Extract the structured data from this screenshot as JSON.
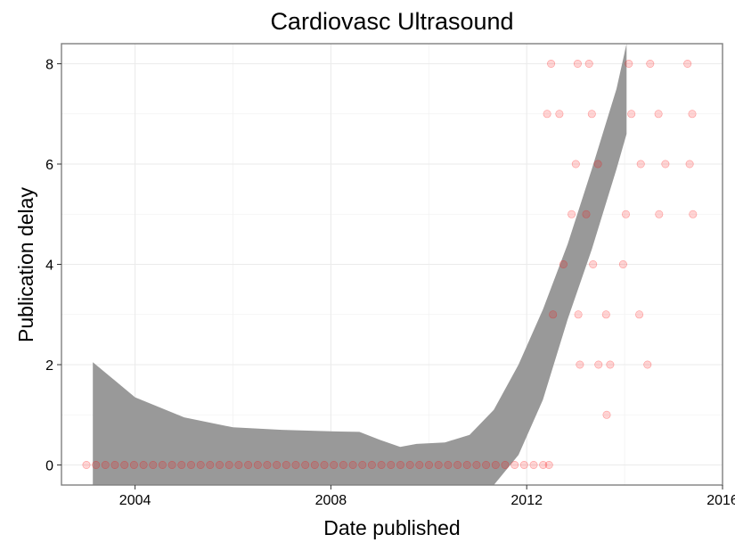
{
  "chart_data": {
    "type": "scatter",
    "title": "Cardiovasc Ultrasound",
    "xlabel": "Date published",
    "ylabel": "Publication delay",
    "xlim": [
      "2002-07-01",
      "2016-01-01"
    ],
    "ylim": [
      -0.4,
      8.4
    ],
    "x_ticks": [
      "2004",
      "2008",
      "2012",
      "2016"
    ],
    "x_tick_values": [
      "2004-01-01",
      "2008-01-01",
      "2012-01-01",
      "2016-01-01"
    ],
    "y_ticks": [
      "0",
      "2",
      "4",
      "6",
      "8"
    ],
    "y_tick_values": [
      0,
      2,
      4,
      6,
      8
    ],
    "grid": true,
    "point_color": "#ff0000",
    "band_color": "#999999",
    "points": [
      {
        "x": "2003-01-03",
        "y": 0
      },
      {
        "x": "2003-03-15",
        "y": 0
      },
      {
        "x": "2003-05-25",
        "y": 0
      },
      {
        "x": "2003-08-04",
        "y": 0
      },
      {
        "x": "2003-10-14",
        "y": 0
      },
      {
        "x": "2003-12-24",
        "y": 0
      },
      {
        "x": "2004-03-04",
        "y": 0
      },
      {
        "x": "2004-05-14",
        "y": 0
      },
      {
        "x": "2004-07-24",
        "y": 0
      },
      {
        "x": "2004-10-03",
        "y": 0
      },
      {
        "x": "2004-12-13",
        "y": 0
      },
      {
        "x": "2005-02-22",
        "y": 0
      },
      {
        "x": "2005-05-04",
        "y": 0
      },
      {
        "x": "2005-07-14",
        "y": 0
      },
      {
        "x": "2005-09-23",
        "y": 0
      },
      {
        "x": "2005-12-03",
        "y": 0
      },
      {
        "x": "2006-02-12",
        "y": 0
      },
      {
        "x": "2006-04-24",
        "y": 0
      },
      {
        "x": "2006-07-04",
        "y": 0
      },
      {
        "x": "2006-09-13",
        "y": 0
      },
      {
        "x": "2006-11-23",
        "y": 0
      },
      {
        "x": "2007-02-02",
        "y": 0
      },
      {
        "x": "2007-04-14",
        "y": 0
      },
      {
        "x": "2007-06-24",
        "y": 0
      },
      {
        "x": "2007-09-03",
        "y": 0
      },
      {
        "x": "2007-11-13",
        "y": 0
      },
      {
        "x": "2008-01-23",
        "y": 0
      },
      {
        "x": "2008-04-03",
        "y": 0
      },
      {
        "x": "2008-06-13",
        "y": 0
      },
      {
        "x": "2008-08-23",
        "y": 0
      },
      {
        "x": "2008-11-02",
        "y": 0
      },
      {
        "x": "2009-01-12",
        "y": 0
      },
      {
        "x": "2009-03-24",
        "y": 0
      },
      {
        "x": "2009-06-03",
        "y": 0
      },
      {
        "x": "2009-08-13",
        "y": 0
      },
      {
        "x": "2009-10-23",
        "y": 0
      },
      {
        "x": "2010-01-02",
        "y": 0
      },
      {
        "x": "2010-03-14",
        "y": 0
      },
      {
        "x": "2010-05-24",
        "y": 0
      },
      {
        "x": "2010-08-03",
        "y": 0
      },
      {
        "x": "2010-10-13",
        "y": 0
      },
      {
        "x": "2010-12-23",
        "y": 0
      },
      {
        "x": "2011-03-04",
        "y": 0
      },
      {
        "x": "2011-05-14",
        "y": 0
      },
      {
        "x": "2011-07-24",
        "y": 0
      },
      {
        "x": "2011-10-03",
        "y": 0
      },
      {
        "x": "2011-12-13",
        "y": 0
      },
      {
        "x": "2012-02-22",
        "y": 0
      },
      {
        "x": "2012-05-03",
        "y": 0
      },
      {
        "x": "2012-06-15",
        "y": 0
      },
      {
        "x": "2012-07-01",
        "y": 8
      },
      {
        "x": "2013-01-15",
        "y": 8
      },
      {
        "x": "2013-04-10",
        "y": 8
      },
      {
        "x": "2014-02-01",
        "y": 8
      },
      {
        "x": "2014-07-10",
        "y": 8
      },
      {
        "x": "2015-04-15",
        "y": 8
      },
      {
        "x": "2012-06-01",
        "y": 7
      },
      {
        "x": "2012-09-01",
        "y": 7
      },
      {
        "x": "2013-05-01",
        "y": 7
      },
      {
        "x": "2014-02-20",
        "y": 7
      },
      {
        "x": "2014-09-10",
        "y": 7
      },
      {
        "x": "2015-05-20",
        "y": 7
      },
      {
        "x": "2013-01-01",
        "y": 6
      },
      {
        "x": "2013-06-15",
        "y": 6
      },
      {
        "x": "2014-05-01",
        "y": 6
      },
      {
        "x": "2014-11-01",
        "y": 6
      },
      {
        "x": "2015-05-01",
        "y": 6
      },
      {
        "x": "2012-12-01",
        "y": 5
      },
      {
        "x": "2013-03-20",
        "y": 5
      },
      {
        "x": "2014-01-10",
        "y": 5
      },
      {
        "x": "2014-09-15",
        "y": 5
      },
      {
        "x": "2015-05-25",
        "y": 5
      },
      {
        "x": "2012-10-01",
        "y": 4
      },
      {
        "x": "2013-05-10",
        "y": 4
      },
      {
        "x": "2013-12-20",
        "y": 4
      },
      {
        "x": "2012-07-15",
        "y": 3
      },
      {
        "x": "2013-01-20",
        "y": 3
      },
      {
        "x": "2013-08-15",
        "y": 3
      },
      {
        "x": "2014-04-20",
        "y": 3
      },
      {
        "x": "2013-02-01",
        "y": 2
      },
      {
        "x": "2013-06-20",
        "y": 2
      },
      {
        "x": "2013-09-15",
        "y": 2
      },
      {
        "x": "2014-06-20",
        "y": 2
      },
      {
        "x": "2013-08-20",
        "y": 1
      }
    ],
    "smooth_band": {
      "x": [
        "2003-02-20",
        "2004-01-01",
        "2005-01-01",
        "2006-01-01",
        "2007-01-01",
        "2008-01-01",
        "2008-08-01",
        "2009-01-01",
        "2009-06-01",
        "2009-10-01",
        "2010-05-01",
        "2010-11-01",
        "2011-05-01",
        "2011-11-01",
        "2012-05-01",
        "2012-11-01",
        "2013-05-01",
        "2013-11-01",
        "2014-01-15"
      ],
      "upper": [
        2.05,
        1.35,
        0.95,
        0.75,
        0.7,
        0.67,
        0.66,
        0.5,
        0.36,
        0.42,
        0.45,
        0.6,
        1.1,
        2.0,
        3.1,
        4.4,
        5.9,
        7.5,
        8.4
      ],
      "lower": [
        -0.4,
        -0.4,
        -0.4,
        -0.4,
        -0.4,
        -0.4,
        -0.4,
        -0.4,
        -0.4,
        -0.4,
        -0.4,
        -0.4,
        -0.4,
        0.2,
        1.3,
        2.9,
        4.3,
        5.9,
        6.6
      ]
    }
  }
}
